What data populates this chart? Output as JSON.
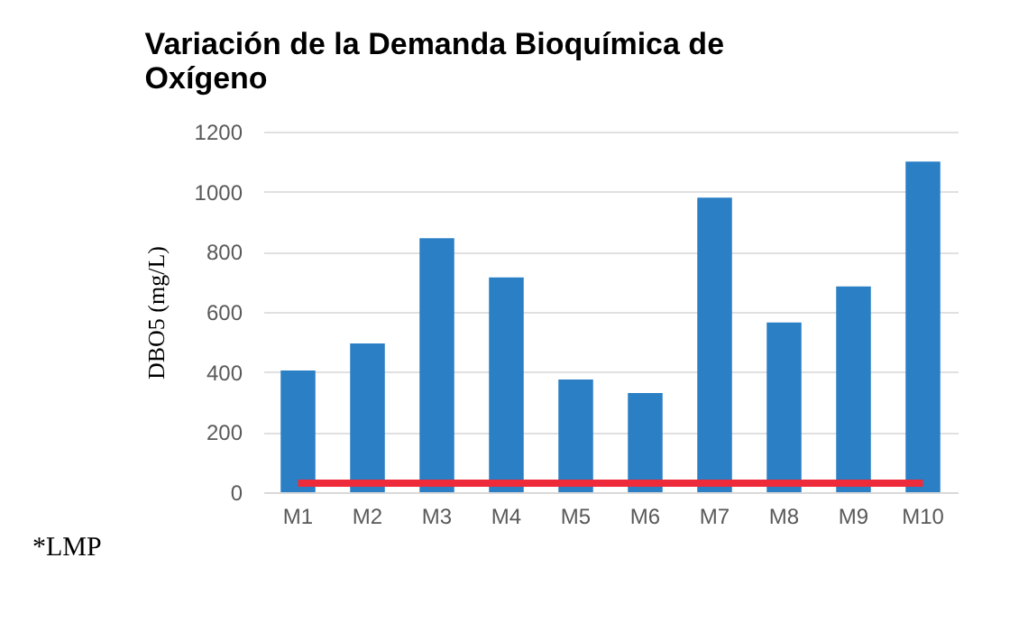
{
  "chart_data": {
    "type": "bar",
    "title": [
      "Variación de la Demanda Bioquímica de",
      "Oxígeno"
    ],
    "ylabel": "DBO5 (mg/L)",
    "categories": [
      "M1",
      "M2",
      "M3",
      "M4",
      "M5",
      "M6",
      "M7",
      "M8",
      "M9",
      "M10"
    ],
    "series": [
      {
        "color": "#2a7fc5",
        "values": [
          405,
          495,
          845,
          715,
          375,
          330,
          980,
          565,
          685,
          1100
        ]
      },
      {
        "type": "line",
        "color": "#ee2b3a",
        "values": [
          30,
          30,
          30,
          30,
          30,
          30,
          30,
          30,
          30,
          30
        ]
      }
    ],
    "ylim": [
      0,
      1200
    ],
    "yticks": [
      0,
      200,
      400,
      600,
      800,
      1000,
      1200
    ],
    "grid": "y",
    "annotations": [
      "*LMP"
    ]
  }
}
